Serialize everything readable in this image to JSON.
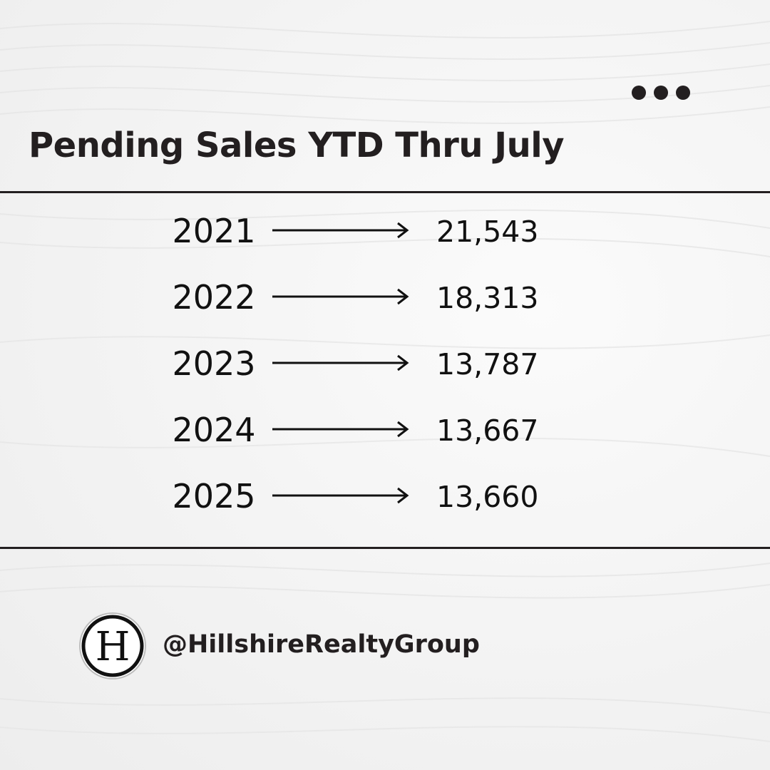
{
  "post": {
    "title": "Pending Sales YTD Thru July",
    "handle": "@HillshireRealtyGroup",
    "logo_letter": "H",
    "menu_icon": "more-dots-icon"
  },
  "rows": [
    {
      "year": "2021",
      "value": "21,543"
    },
    {
      "year": "2022",
      "value": "18,313"
    },
    {
      "year": "2023",
      "value": "13,787"
    },
    {
      "year": "2024",
      "value": "13,667"
    },
    {
      "year": "2025",
      "value": "13,660"
    }
  ],
  "colors": {
    "text": "#231f20",
    "background": "#f4f4f4"
  }
}
